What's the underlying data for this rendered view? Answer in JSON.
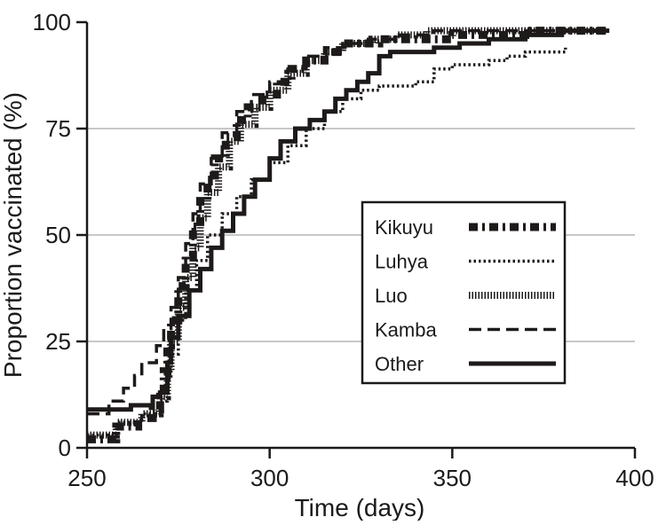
{
  "chart_data": {
    "type": "line",
    "title": "",
    "xlabel": "Time (days)",
    "ylabel": "Proportion vaccinated (%)",
    "xlim": [
      250,
      400
    ],
    "ylim": [
      0,
      100
    ],
    "xticks": [
      250,
      300,
      350,
      400
    ],
    "yticks": [
      0,
      25,
      50,
      75,
      100
    ],
    "grid": "horizontal",
    "legend_position": "right",
    "series": [
      {
        "name": "Kikuyu",
        "style": "dashdot-squares",
        "points": [
          [
            250,
            2
          ],
          [
            258,
            5
          ],
          [
            264,
            7
          ],
          [
            268,
            9
          ],
          [
            270,
            12
          ],
          [
            271,
            18
          ],
          [
            272,
            24
          ],
          [
            273,
            30
          ],
          [
            275,
            38
          ],
          [
            277,
            45
          ],
          [
            279,
            52
          ],
          [
            281,
            58
          ],
          [
            283,
            63
          ],
          [
            285,
            68
          ],
          [
            288,
            73
          ],
          [
            291,
            77
          ],
          [
            294,
            80
          ],
          [
            298,
            83
          ],
          [
            302,
            86
          ],
          [
            306,
            89
          ],
          [
            310,
            91
          ],
          [
            315,
            93
          ],
          [
            320,
            95
          ],
          [
            330,
            96
          ],
          [
            340,
            96
          ],
          [
            350,
            97
          ],
          [
            360,
            97
          ],
          [
            370,
            98
          ],
          [
            380,
            98
          ],
          [
            393,
            98
          ]
        ]
      },
      {
        "name": "Luhya",
        "style": "dotted",
        "points": [
          [
            250,
            3
          ],
          [
            258,
            6
          ],
          [
            265,
            8
          ],
          [
            270,
            11
          ],
          [
            272,
            16
          ],
          [
            273,
            22
          ],
          [
            275,
            30
          ],
          [
            277,
            37
          ],
          [
            280,
            44
          ],
          [
            283,
            50
          ],
          [
            287,
            55
          ],
          [
            291,
            59
          ],
          [
            295,
            63
          ],
          [
            300,
            67
          ],
          [
            305,
            71
          ],
          [
            310,
            75
          ],
          [
            315,
            79
          ],
          [
            320,
            82
          ],
          [
            325,
            84
          ],
          [
            330,
            85
          ],
          [
            335,
            85
          ],
          [
            340,
            86
          ],
          [
            345,
            89
          ],
          [
            350,
            90
          ],
          [
            355,
            90
          ],
          [
            360,
            91
          ],
          [
            365,
            92
          ],
          [
            370,
            93
          ],
          [
            375,
            93
          ],
          [
            381,
            94
          ]
        ]
      },
      {
        "name": "Luo",
        "style": "vertical-hatch",
        "points": [
          [
            250,
            3
          ],
          [
            258,
            6
          ],
          [
            265,
            8
          ],
          [
            270,
            12
          ],
          [
            272,
            18
          ],
          [
            273,
            25
          ],
          [
            275,
            33
          ],
          [
            277,
            40
          ],
          [
            279,
            47
          ],
          [
            281,
            54
          ],
          [
            283,
            60
          ],
          [
            286,
            66
          ],
          [
            289,
            72
          ],
          [
            292,
            76
          ],
          [
            296,
            80
          ],
          [
            300,
            84
          ],
          [
            305,
            88
          ],
          [
            310,
            91
          ],
          [
            315,
            93
          ],
          [
            320,
            95
          ],
          [
            328,
            96
          ],
          [
            335,
            97
          ],
          [
            343,
            98
          ],
          [
            350,
            98
          ],
          [
            360,
            98
          ],
          [
            370,
            98
          ],
          [
            380,
            98
          ],
          [
            392,
            98
          ]
        ]
      },
      {
        "name": "Kamba",
        "style": "long-dash",
        "points": [
          [
            250,
            8
          ],
          [
            256,
            11
          ],
          [
            260,
            14
          ],
          [
            263,
            17
          ],
          [
            265,
            20
          ],
          [
            269,
            24
          ],
          [
            271,
            28
          ],
          [
            273,
            33
          ],
          [
            275,
            40
          ],
          [
            277,
            48
          ],
          [
            279,
            55
          ],
          [
            281,
            62
          ],
          [
            284,
            68
          ],
          [
            287,
            74
          ],
          [
            291,
            79
          ],
          [
            295,
            83
          ],
          [
            300,
            86
          ],
          [
            305,
            89
          ],
          [
            310,
            92
          ],
          [
            315,
            94
          ],
          [
            320,
            95
          ],
          [
            327,
            96
          ],
          [
            335,
            97
          ],
          [
            345,
            98
          ],
          [
            360,
            98
          ],
          [
            375,
            98
          ],
          [
            392,
            98
          ]
        ]
      },
      {
        "name": "Other",
        "style": "solid",
        "points": [
          [
            250,
            9
          ],
          [
            258,
            9
          ],
          [
            262,
            10
          ],
          [
            265,
            10
          ],
          [
            268,
            12
          ],
          [
            270,
            13
          ],
          [
            272,
            20
          ],
          [
            273,
            26
          ],
          [
            275,
            31
          ],
          [
            278,
            37
          ],
          [
            281,
            42
          ],
          [
            284,
            47
          ],
          [
            287,
            51
          ],
          [
            290,
            55
          ],
          [
            293,
            59
          ],
          [
            296,
            63
          ],
          [
            300,
            68
          ],
          [
            303,
            72
          ],
          [
            307,
            75
          ],
          [
            311,
            77
          ],
          [
            315,
            79
          ],
          [
            318,
            82
          ],
          [
            321,
            84
          ],
          [
            324,
            86
          ],
          [
            327,
            88
          ],
          [
            330,
            92
          ],
          [
            333,
            93
          ],
          [
            338,
            93
          ],
          [
            345,
            94
          ],
          [
            352,
            95
          ],
          [
            360,
            96
          ],
          [
            370,
            97
          ],
          [
            380,
            98
          ],
          [
            393,
            98
          ]
        ]
      }
    ]
  },
  "colors": {
    "line": "#1e1a1a",
    "grid": "#c8c8c8",
    "axis": "#1a1a1a",
    "background": "#ffffff"
  }
}
